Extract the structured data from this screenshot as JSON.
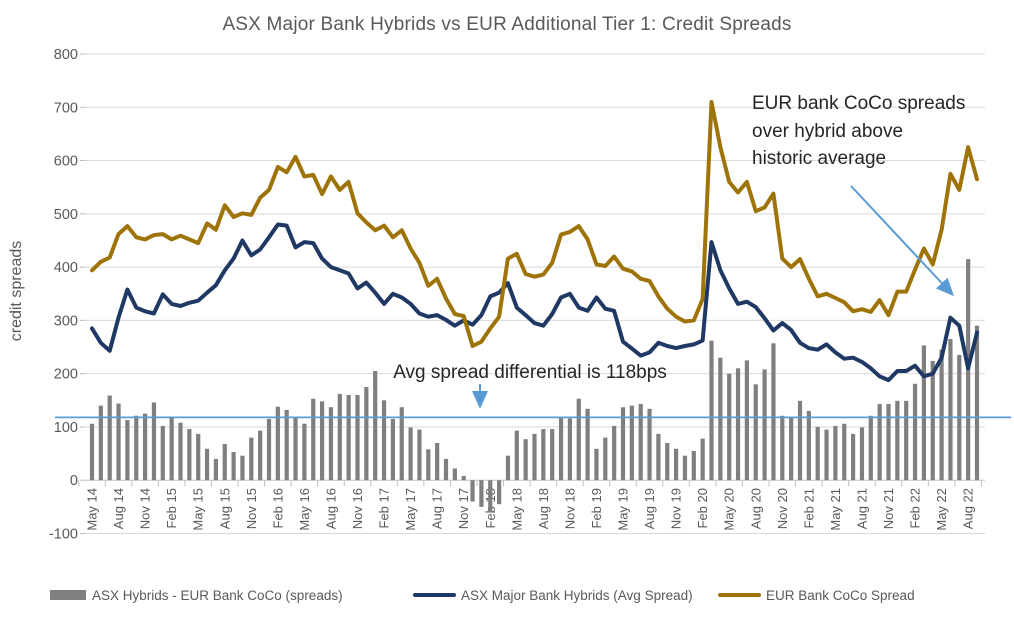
{
  "title": "ASX Major Bank Hybrids vs EUR Additional Tier 1: Credit Spreads",
  "y_axis": {
    "title": "credit spreads",
    "ticks": [
      800,
      700,
      600,
      500,
      400,
      300,
      200,
      100,
      0,
      -100
    ]
  },
  "annotations": {
    "coco": {
      "text": "EUR bank CoCo spreads over hybrid above historic average"
    },
    "avg": {
      "text": "Avg spread differential is 118bps"
    }
  },
  "legend": [
    {
      "label": "ASX Hybrids - EUR Bank CoCo (spreads)",
      "type": "bar",
      "color": "#7F7F7F"
    },
    {
      "label": "ASX Major Bank Hybrids (Avg Spread)",
      "type": "line",
      "color": "#1F3864"
    },
    {
      "label": "EUR Bank CoCo Spread",
      "type": "line",
      "color": "#9E7308"
    }
  ],
  "colors": {
    "bars": "#7F7F7F",
    "asx_line": "#1F3864",
    "eur_line": "#9E7308",
    "avg_line": "#5B9BD5",
    "arrow": "#5B9BD5",
    "grid": "#D9D9D9",
    "axis": "#C6C6C6",
    "tick": "#BFBFBF",
    "label_text": "#595959"
  },
  "chart_data": {
    "type": "combo",
    "frequency": "monthly",
    "x_start": "May 2014",
    "x_end": "Sep 2022",
    "categories_quarterly": [
      "May 14",
      "Aug 14",
      "Nov 14",
      "Feb 15",
      "May 15",
      "Aug 15",
      "Nov 15",
      "Feb 16",
      "May 16",
      "Aug 16",
      "Nov 16",
      "Feb 17",
      "May 17",
      "Aug 17",
      "Nov 17",
      "Feb 18",
      "May 18",
      "Aug 18",
      "Nov 18",
      "Feb 19",
      "May 19",
      "Aug 19",
      "Nov 19",
      "Feb 20",
      "May 20",
      "Aug 20",
      "Nov 20",
      "Feb 21",
      "May 21",
      "Aug 21",
      "Nov 21",
      "Feb 22",
      "May 22",
      "Aug 22"
    ],
    "ylabel": "credit spreads",
    "ylim": [
      -100,
      800
    ],
    "grid": true,
    "legend_position": "bottom",
    "avg_line": {
      "value": 118,
      "color": "#5B9BD5",
      "note": "Avg spread differential is 118bps"
    },
    "series": [
      {
        "name": "ASX Hybrids - EUR Bank CoCo (spreads)",
        "type": "bar",
        "color": "#7F7F7F",
        "values": [
          106,
          140,
          159,
          144,
          113,
          121,
          125,
          146,
          102,
          119,
          108,
          96,
          87,
          59,
          40,
          68,
          53,
          46,
          80,
          93,
          115,
          138,
          132,
          118,
          106,
          153,
          148,
          137,
          162,
          160,
          160,
          175,
          205,
          150,
          115,
          137,
          99,
          95,
          58,
          70,
          40,
          22,
          8,
          -40,
          -50,
          -60,
          -45,
          46,
          93,
          77,
          87,
          96,
          96,
          118,
          116,
          153,
          134,
          59,
          80,
          102,
          137,
          140,
          143,
          134,
          87,
          70,
          59,
          46,
          55,
          78,
          262,
          230,
          200,
          210,
          225,
          180,
          208,
          257,
          121,
          118,
          149,
          130,
          100,
          95,
          102,
          106,
          87,
          99,
          121,
          143,
          143,
          149,
          149,
          181,
          253,
          224,
          245,
          265,
          235,
          415,
          290
        ]
      },
      {
        "name": "ASX Major Bank Hybrids (Avg Spread)",
        "type": "line",
        "color": "#1F3864",
        "values": [
          285,
          258,
          243,
          305,
          358,
          324,
          317,
          313,
          349,
          331,
          327,
          333,
          337,
          352,
          366,
          394,
          416,
          450,
          422,
          433,
          456,
          480,
          478,
          437,
          447,
          445,
          416,
          400,
          394,
          388,
          360,
          371,
          352,
          331,
          350,
          343,
          331,
          313,
          307,
          310,
          301,
          290,
          300,
          292,
          310,
          345,
          352,
          370,
          324,
          310,
          295,
          290,
          312,
          343,
          350,
          324,
          318,
          343,
          322,
          318,
          260,
          247,
          234,
          240,
          258,
          252,
          248,
          252,
          255,
          262,
          447,
          394,
          360,
          331,
          335,
          325,
          304,
          281,
          295,
          282,
          258,
          248,
          245,
          255,
          240,
          228,
          230,
          222,
          210,
          195,
          188,
          205,
          205,
          215,
          195,
          200,
          230,
          305,
          290,
          210,
          277
        ]
      },
      {
        "name": "EUR Bank CoCo Spread",
        "type": "line",
        "color": "#9E7308",
        "values": [
          394,
          410,
          418,
          462,
          477,
          456,
          452,
          460,
          462,
          452,
          459,
          452,
          445,
          482,
          470,
          516,
          494,
          501,
          498,
          530,
          545,
          588,
          578,
          607,
          570,
          573,
          537,
          570,
          545,
          560,
          501,
          484,
          469,
          478,
          456,
          469,
          435,
          408,
          365,
          378,
          341,
          312,
          308,
          252,
          260,
          285,
          307,
          416,
          425,
          387,
          382,
          386,
          408,
          461,
          466,
          477,
          452,
          405,
          402,
          420,
          397,
          392,
          378,
          374,
          345,
          322,
          307,
          298,
          300,
          340,
          710,
          625,
          560,
          540,
          560,
          505,
          512,
          538,
          416,
          400,
          415,
          378,
          345,
          350,
          342,
          334,
          317,
          321,
          316,
          338,
          310,
          354,
          354,
          395,
          435,
          405,
          470,
          575,
          545,
          625,
          565
        ]
      }
    ]
  }
}
